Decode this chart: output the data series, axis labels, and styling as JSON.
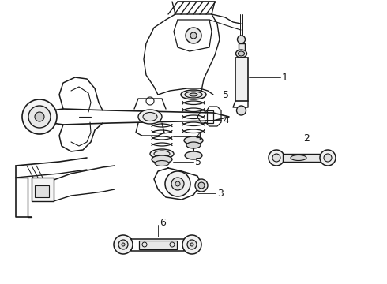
{
  "background_color": "#ffffff",
  "figsize": [
    4.9,
    3.6
  ],
  "dpi": 100,
  "image_b64": ""
}
